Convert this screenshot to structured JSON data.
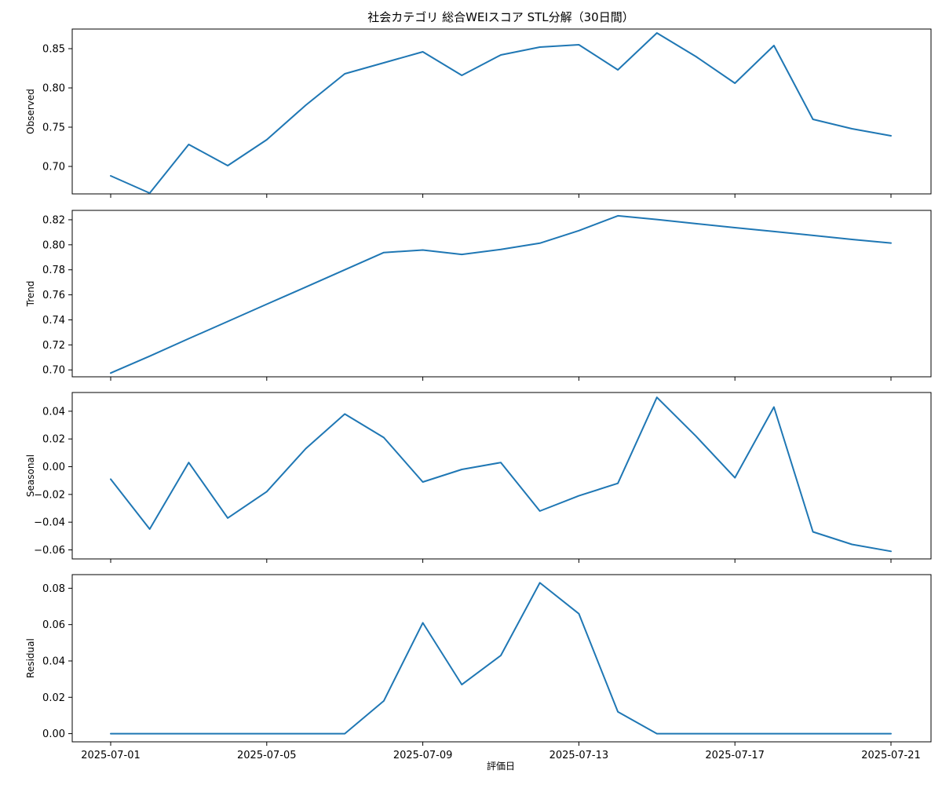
{
  "chart_data": {
    "type": "line",
    "title": "社会カテゴリ 総合WEIスコア STL分解（30日間）",
    "xlabel": "評価日",
    "line_color": "#1f77b4",
    "x": [
      "2025-07-01",
      "2025-07-02",
      "2025-07-03",
      "2025-07-04",
      "2025-07-05",
      "2025-07-06",
      "2025-07-07",
      "2025-07-08",
      "2025-07-09",
      "2025-07-10",
      "2025-07-11",
      "2025-07-12",
      "2025-07-13",
      "2025-07-14",
      "2025-07-15",
      "2025-07-16",
      "2025-07-17",
      "2025-07-18",
      "2025-07-19",
      "2025-07-20",
      "2025-07-21"
    ],
    "xticks": [
      "2025-07-01",
      "2025-07-05",
      "2025-07-09",
      "2025-07-13",
      "2025-07-17",
      "2025-07-21"
    ],
    "panels": [
      {
        "ylabel": "Observed",
        "ylim": [
          0.665,
          0.875
        ],
        "yticks": [
          "0.70",
          "0.75",
          "0.80",
          "0.85"
        ],
        "values": [
          0.688,
          0.666,
          0.728,
          0.701,
          0.734,
          0.778,
          0.818,
          0.832,
          0.846,
          0.816,
          0.842,
          0.852,
          0.855,
          0.823,
          0.87,
          0.84,
          0.806,
          0.854,
          0.76,
          0.748,
          0.739
        ]
      },
      {
        "ylabel": "Trend",
        "ylim": [
          0.6945,
          0.8275
        ],
        "yticks": [
          "0.70",
          "0.72",
          "0.74",
          "0.76",
          "0.78",
          "0.80",
          "0.82"
        ],
        "values": [
          0.6975,
          0.711,
          0.725,
          0.7387,
          0.7525,
          0.7662,
          0.78,
          0.7938,
          0.7958,
          0.7923,
          0.7963,
          0.8013,
          0.8113,
          0.8232,
          0.8202,
          0.8169,
          0.8137,
          0.8106,
          0.8075,
          0.8043,
          0.8014
        ]
      },
      {
        "ylabel": "Seasonal",
        "ylim": [
          -0.0665,
          0.0535
        ],
        "yticks": [
          "−0.06",
          "−0.04",
          "−0.02",
          "0.00",
          "0.02",
          "0.04"
        ],
        "values": [
          -0.009,
          -0.045,
          0.003,
          -0.037,
          -0.018,
          0.013,
          0.038,
          0.021,
          -0.011,
          -0.002,
          0.003,
          -0.032,
          -0.021,
          -0.012,
          0.05,
          0.022,
          -0.008,
          0.043,
          -0.047,
          -0.056,
          -0.061
        ]
      },
      {
        "ylabel": "Residual",
        "ylim": [
          -0.0045,
          0.0875
        ],
        "yticks": [
          "0.00",
          "0.02",
          "0.04",
          "0.06",
          "0.08"
        ],
        "values": [
          0,
          0,
          0,
          0,
          0,
          0,
          0,
          0.018,
          0.061,
          0.027,
          0.043,
          0.083,
          0.066,
          0.012,
          0,
          0,
          0,
          0,
          0,
          0,
          0
        ]
      }
    ]
  }
}
